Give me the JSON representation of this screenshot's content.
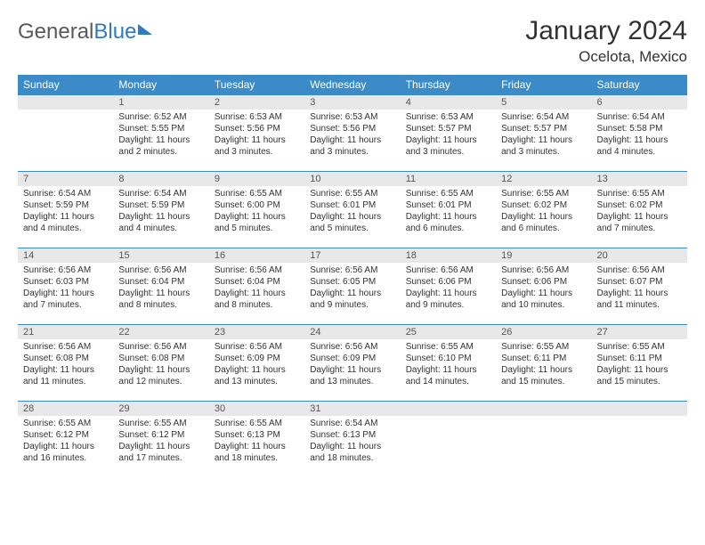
{
  "brand": {
    "part1": "General",
    "part2": "Blue"
  },
  "title": {
    "month": "January 2024",
    "location": "Ocelota, Mexico"
  },
  "weekdays": [
    "Sunday",
    "Monday",
    "Tuesday",
    "Wednesday",
    "Thursday",
    "Friday",
    "Saturday"
  ],
  "colors": {
    "header_bg": "#3b8bc8",
    "header_text": "#ffffff",
    "daynum_bg": "#e8e8e8",
    "border": "#3b8bc8",
    "text": "#333333",
    "logo_gray": "#5a5a5a",
    "logo_blue": "#2f7bbf"
  },
  "start_offset": 1,
  "days": [
    {
      "n": "1",
      "sunrise": "Sunrise: 6:52 AM",
      "sunset": "Sunset: 5:55 PM",
      "day": "Daylight: 11 hours and 2 minutes."
    },
    {
      "n": "2",
      "sunrise": "Sunrise: 6:53 AM",
      "sunset": "Sunset: 5:56 PM",
      "day": "Daylight: 11 hours and 3 minutes."
    },
    {
      "n": "3",
      "sunrise": "Sunrise: 6:53 AM",
      "sunset": "Sunset: 5:56 PM",
      "day": "Daylight: 11 hours and 3 minutes."
    },
    {
      "n": "4",
      "sunrise": "Sunrise: 6:53 AM",
      "sunset": "Sunset: 5:57 PM",
      "day": "Daylight: 11 hours and 3 minutes."
    },
    {
      "n": "5",
      "sunrise": "Sunrise: 6:54 AM",
      "sunset": "Sunset: 5:57 PM",
      "day": "Daylight: 11 hours and 3 minutes."
    },
    {
      "n": "6",
      "sunrise": "Sunrise: 6:54 AM",
      "sunset": "Sunset: 5:58 PM",
      "day": "Daylight: 11 hours and 4 minutes."
    },
    {
      "n": "7",
      "sunrise": "Sunrise: 6:54 AM",
      "sunset": "Sunset: 5:59 PM",
      "day": "Daylight: 11 hours and 4 minutes."
    },
    {
      "n": "8",
      "sunrise": "Sunrise: 6:54 AM",
      "sunset": "Sunset: 5:59 PM",
      "day": "Daylight: 11 hours and 4 minutes."
    },
    {
      "n": "9",
      "sunrise": "Sunrise: 6:55 AM",
      "sunset": "Sunset: 6:00 PM",
      "day": "Daylight: 11 hours and 5 minutes."
    },
    {
      "n": "10",
      "sunrise": "Sunrise: 6:55 AM",
      "sunset": "Sunset: 6:01 PM",
      "day": "Daylight: 11 hours and 5 minutes."
    },
    {
      "n": "11",
      "sunrise": "Sunrise: 6:55 AM",
      "sunset": "Sunset: 6:01 PM",
      "day": "Daylight: 11 hours and 6 minutes."
    },
    {
      "n": "12",
      "sunrise": "Sunrise: 6:55 AM",
      "sunset": "Sunset: 6:02 PM",
      "day": "Daylight: 11 hours and 6 minutes."
    },
    {
      "n": "13",
      "sunrise": "Sunrise: 6:55 AM",
      "sunset": "Sunset: 6:02 PM",
      "day": "Daylight: 11 hours and 7 minutes."
    },
    {
      "n": "14",
      "sunrise": "Sunrise: 6:56 AM",
      "sunset": "Sunset: 6:03 PM",
      "day": "Daylight: 11 hours and 7 minutes."
    },
    {
      "n": "15",
      "sunrise": "Sunrise: 6:56 AM",
      "sunset": "Sunset: 6:04 PM",
      "day": "Daylight: 11 hours and 8 minutes."
    },
    {
      "n": "16",
      "sunrise": "Sunrise: 6:56 AM",
      "sunset": "Sunset: 6:04 PM",
      "day": "Daylight: 11 hours and 8 minutes."
    },
    {
      "n": "17",
      "sunrise": "Sunrise: 6:56 AM",
      "sunset": "Sunset: 6:05 PM",
      "day": "Daylight: 11 hours and 9 minutes."
    },
    {
      "n": "18",
      "sunrise": "Sunrise: 6:56 AM",
      "sunset": "Sunset: 6:06 PM",
      "day": "Daylight: 11 hours and 9 minutes."
    },
    {
      "n": "19",
      "sunrise": "Sunrise: 6:56 AM",
      "sunset": "Sunset: 6:06 PM",
      "day": "Daylight: 11 hours and 10 minutes."
    },
    {
      "n": "20",
      "sunrise": "Sunrise: 6:56 AM",
      "sunset": "Sunset: 6:07 PM",
      "day": "Daylight: 11 hours and 11 minutes."
    },
    {
      "n": "21",
      "sunrise": "Sunrise: 6:56 AM",
      "sunset": "Sunset: 6:08 PM",
      "day": "Daylight: 11 hours and 11 minutes."
    },
    {
      "n": "22",
      "sunrise": "Sunrise: 6:56 AM",
      "sunset": "Sunset: 6:08 PM",
      "day": "Daylight: 11 hours and 12 minutes."
    },
    {
      "n": "23",
      "sunrise": "Sunrise: 6:56 AM",
      "sunset": "Sunset: 6:09 PM",
      "day": "Daylight: 11 hours and 13 minutes."
    },
    {
      "n": "24",
      "sunrise": "Sunrise: 6:56 AM",
      "sunset": "Sunset: 6:09 PM",
      "day": "Daylight: 11 hours and 13 minutes."
    },
    {
      "n": "25",
      "sunrise": "Sunrise: 6:55 AM",
      "sunset": "Sunset: 6:10 PM",
      "day": "Daylight: 11 hours and 14 minutes."
    },
    {
      "n": "26",
      "sunrise": "Sunrise: 6:55 AM",
      "sunset": "Sunset: 6:11 PM",
      "day": "Daylight: 11 hours and 15 minutes."
    },
    {
      "n": "27",
      "sunrise": "Sunrise: 6:55 AM",
      "sunset": "Sunset: 6:11 PM",
      "day": "Daylight: 11 hours and 15 minutes."
    },
    {
      "n": "28",
      "sunrise": "Sunrise: 6:55 AM",
      "sunset": "Sunset: 6:12 PM",
      "day": "Daylight: 11 hours and 16 minutes."
    },
    {
      "n": "29",
      "sunrise": "Sunrise: 6:55 AM",
      "sunset": "Sunset: 6:12 PM",
      "day": "Daylight: 11 hours and 17 minutes."
    },
    {
      "n": "30",
      "sunrise": "Sunrise: 6:55 AM",
      "sunset": "Sunset: 6:13 PM",
      "day": "Daylight: 11 hours and 18 minutes."
    },
    {
      "n": "31",
      "sunrise": "Sunrise: 6:54 AM",
      "sunset": "Sunset: 6:13 PM",
      "day": "Daylight: 11 hours and 18 minutes."
    }
  ]
}
